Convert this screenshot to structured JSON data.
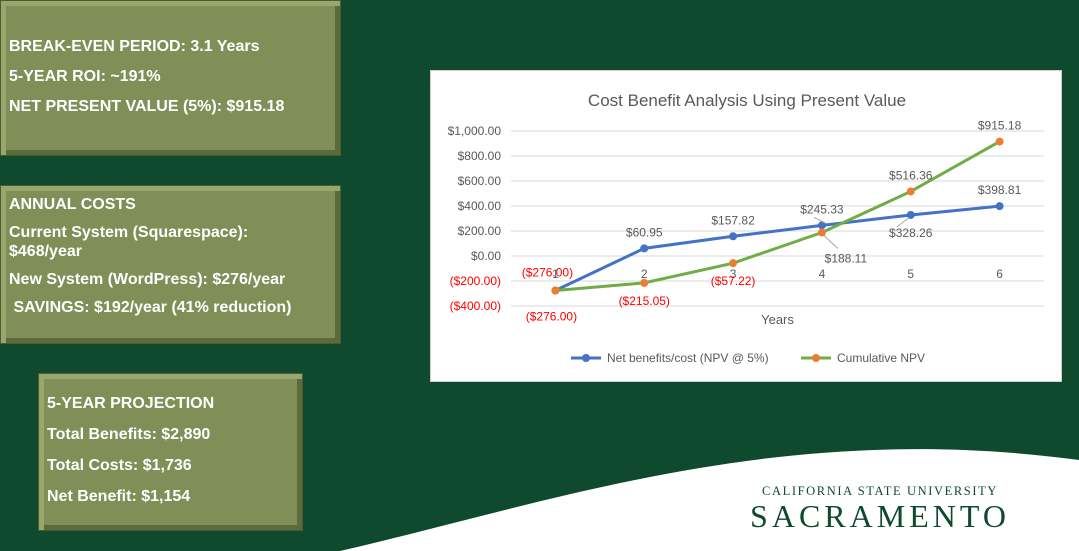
{
  "box1": {
    "lines": [
      "BREAK-EVEN PERIOD: 3.1 Years",
      "5-YEAR ROI: ~191%",
      "NET PRESENT VALUE (5%): $915.18"
    ]
  },
  "box2": {
    "lines": [
      "ANNUAL COSTS",
      "Current System (Squarespace):",
      "$468/year",
      "New System (WordPress): $276/year",
      " SAVINGS: $192/year (41% reduction)"
    ]
  },
  "box3": {
    "lines": [
      "5-YEAR PROJECTION",
      "Total Benefits: $2,890",
      "Total Costs: $1,736",
      "Net Benefit: $1,154"
    ]
  },
  "logo": {
    "top": "CALIFORNIA STATE UNIVERSITY",
    "bottom": "SACRAMENTO"
  },
  "colors": {
    "background": "#0f4a2f",
    "box": "#7f8f57",
    "net_series": "#4472c4",
    "cumulative_series": "#70ad47",
    "marker_orange": "#ed7d31",
    "negative_label": "#ff0000"
  },
  "chart_data": {
    "type": "line",
    "title": "Cost Benefit Analysis Using Present Value",
    "xlabel": "Years",
    "ylabel": "",
    "categories": [
      "1",
      "2",
      "3",
      "4",
      "5",
      "6"
    ],
    "ylim": [
      -400,
      1000
    ],
    "yticks": [
      1000,
      800,
      600,
      400,
      200,
      0,
      -200,
      -400
    ],
    "ytick_labels": [
      "$1,000.00",
      "$800.00",
      "$600.00",
      "$400.00",
      "$200.00",
      "$0.00",
      "($200.00)",
      "($400.00)"
    ],
    "grid": true,
    "legend": "bottom",
    "series": [
      {
        "name": "Net benefits/cost (NPV @ 5%)",
        "values": [
          -276.0,
          60.95,
          157.82,
          245.33,
          328.26,
          398.81
        ],
        "labels": [
          "($276.00)",
          "$60.95",
          "$157.82",
          "$245.33",
          "$328.26",
          "$398.81"
        ],
        "label_pos": [
          "above",
          "above",
          "above",
          "above",
          "below",
          "above"
        ]
      },
      {
        "name": "Cumulative NPV",
        "values": [
          -276.0,
          -215.05,
          -57.22,
          188.11,
          516.36,
          915.18
        ],
        "labels": [
          "($276.00)",
          "($215.05)",
          "($57.22)",
          "$188.11",
          "$516.36",
          "$915.18"
        ],
        "label_pos": [
          "below",
          "below",
          "below",
          "below-right",
          "above",
          "above"
        ]
      }
    ]
  }
}
